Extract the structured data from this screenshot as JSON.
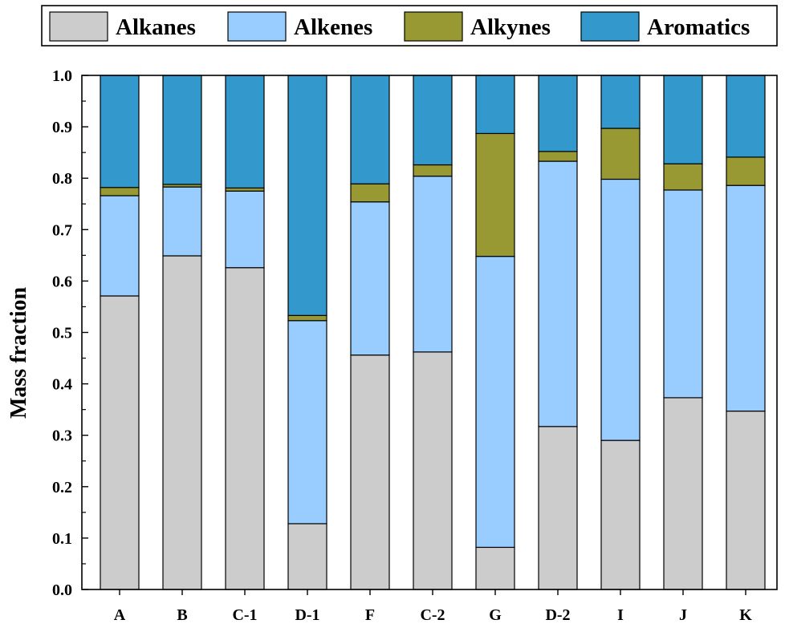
{
  "chart_data": {
    "type": "bar",
    "stacked": true,
    "categories": [
      "A",
      "B",
      "C-1",
      "D-1",
      "F",
      "C-2",
      "G",
      "D-2",
      "I",
      "J",
      "K"
    ],
    "series": [
      {
        "name": "Alkanes",
        "color": "#cccccc",
        "values": [
          0.571,
          0.649,
          0.626,
          0.128,
          0.456,
          0.462,
          0.082,
          0.317,
          0.29,
          0.373,
          0.347
        ]
      },
      {
        "name": "Alkenes",
        "color": "#99ccff",
        "values": [
          0.195,
          0.134,
          0.149,
          0.395,
          0.298,
          0.342,
          0.566,
          0.516,
          0.508,
          0.404,
          0.439
        ]
      },
      {
        "name": "Alkynes",
        "color": "#999933",
        "values": [
          0.016,
          0.005,
          0.006,
          0.01,
          0.035,
          0.022,
          0.239,
          0.019,
          0.099,
          0.051,
          0.055
        ]
      },
      {
        "name": "Aromatics",
        "color": "#3399cc",
        "values": [
          0.218,
          0.212,
          0.219,
          0.467,
          0.211,
          0.174,
          0.113,
          0.148,
          0.103,
          0.172,
          0.159
        ]
      }
    ],
    "ylabel": "Mass fraction",
    "xlabel": "",
    "ylim": [
      0,
      1.0
    ],
    "yticks": [
      "0.0",
      "0.1",
      "0.2",
      "0.3",
      "0.4",
      "0.5",
      "0.6",
      "0.7",
      "0.8",
      "0.9",
      "1.0"
    ],
    "legend": "top",
    "grid": false
  }
}
